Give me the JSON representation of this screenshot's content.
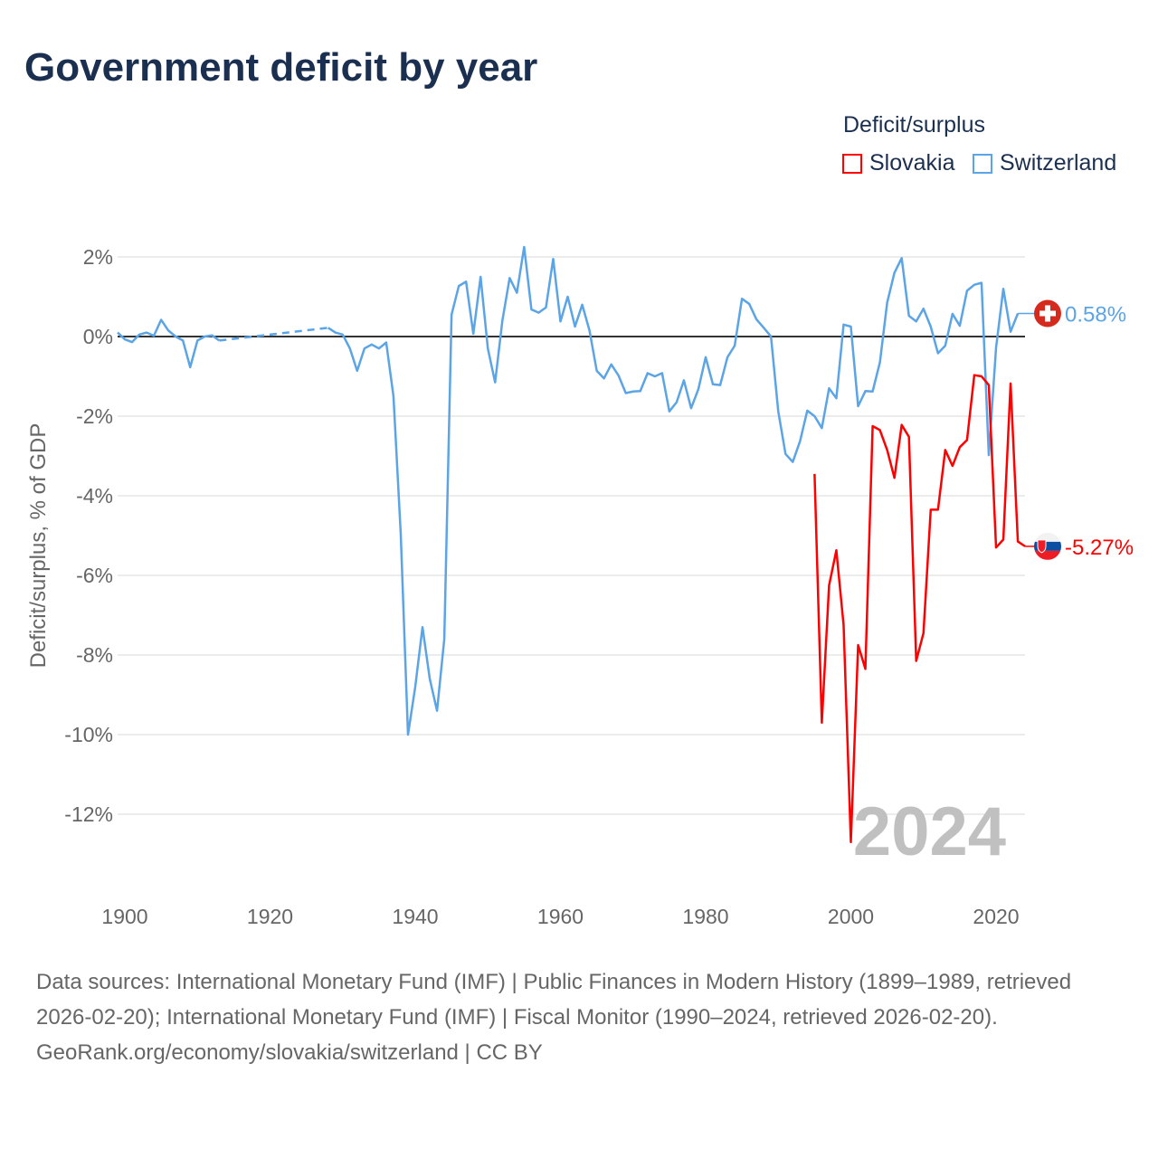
{
  "title": "Government deficit by year",
  "legend": {
    "title": "Deficit/surplus",
    "items": [
      {
        "name": "Slovakia",
        "color": "#ff0000"
      },
      {
        "name": "Switzerland",
        "color": "#5ba4e6"
      }
    ]
  },
  "chart_data": {
    "type": "line",
    "title": "Government deficit by year",
    "xlabel": "",
    "ylabel": "Deficit/surplus, % of GDP",
    "xlim": [
      1899,
      2024
    ],
    "ylim": [
      -13.5,
      2.5
    ],
    "xticks": [
      "1900",
      "1920",
      "1940",
      "1960",
      "1980",
      "2000",
      "2020"
    ],
    "yticks": [
      "2%",
      "0%",
      "-2%",
      "-4%",
      "-6%",
      "-8%",
      "-10%",
      "-12%"
    ],
    "year_watermark": "2024",
    "series": [
      {
        "name": "Switzerland",
        "color": "#5ba4e6",
        "end_label": "0.58%",
        "start_year": 1899,
        "values": [
          0.1,
          -0.07,
          -0.14,
          0.05,
          0.1,
          0.02,
          0.42,
          0.15,
          0.0,
          -0.1,
          -0.77,
          -0.1,
          0.0,
          0.03,
          -0.1,
          null,
          null,
          null,
          null,
          null,
          null,
          null,
          null,
          null,
          null,
          null,
          null,
          null,
          null,
          0.22,
          0.1,
          0.05,
          -0.3,
          -0.86,
          -0.3,
          -0.2,
          -0.3,
          -0.15,
          -1.5,
          -4.95,
          -10.0,
          -8.8,
          -7.3,
          -8.6,
          -9.4,
          -7.6,
          0.55,
          1.27,
          1.38,
          0.07,
          1.5,
          -0.3,
          -1.15,
          0.4,
          1.47,
          1.1,
          2.25,
          0.68,
          0.6,
          0.73,
          1.95,
          0.38,
          1.0,
          0.25,
          0.8,
          0.15,
          -0.86,
          -1.05,
          -0.7,
          -0.98,
          -1.42,
          -1.38,
          -1.37,
          -0.92,
          -1.0,
          -0.92,
          -1.88,
          -1.65,
          -1.1,
          -1.8,
          -1.32,
          -0.52,
          -1.2,
          -1.22,
          -0.52,
          -0.23,
          0.95,
          0.82,
          0.43,
          0.22,
          0.0,
          -1.88,
          -2.95,
          -3.15,
          -2.63,
          -1.86,
          -2.0,
          -2.3,
          -1.3,
          -1.55,
          0.3,
          0.25,
          -1.75,
          -1.37,
          -1.38,
          -0.65,
          0.85,
          1.6,
          1.97,
          0.52,
          0.38,
          0.7,
          0.25,
          -0.42,
          -0.23,
          0.57,
          0.27,
          1.15,
          1.3,
          1.35,
          -2.98,
          -0.28,
          1.2,
          0.12,
          0.58
        ]
      },
      {
        "name": "Slovakia",
        "color": "#ff0000",
        "end_label": "-5.27%",
        "start_year": 1995,
        "values": [
          -3.45,
          -9.7,
          -6.25,
          -5.37,
          -7.25,
          -12.7,
          -7.75,
          -8.35,
          -2.25,
          -2.35,
          -2.85,
          -3.55,
          -2.22,
          -2.52,
          -8.15,
          -7.45,
          -4.35,
          -4.35,
          -2.85,
          -3.25,
          -2.78,
          -2.6,
          -0.97,
          -1.0,
          -1.22,
          -5.3,
          -5.1,
          -1.18,
          -5.15,
          -5.27
        ]
      }
    ]
  },
  "footer": {
    "sources": "Data sources: International Monetary Fund (IMF) | Public Finances in Modern History (1899–1989, retrieved 2026-02-20); International Monetary Fund (IMF) | Fiscal Monitor (1990–2024, retrieved 2026-02-20).",
    "credit": "GeoRank.org/economy/slovakia/switzerland | CC BY"
  }
}
